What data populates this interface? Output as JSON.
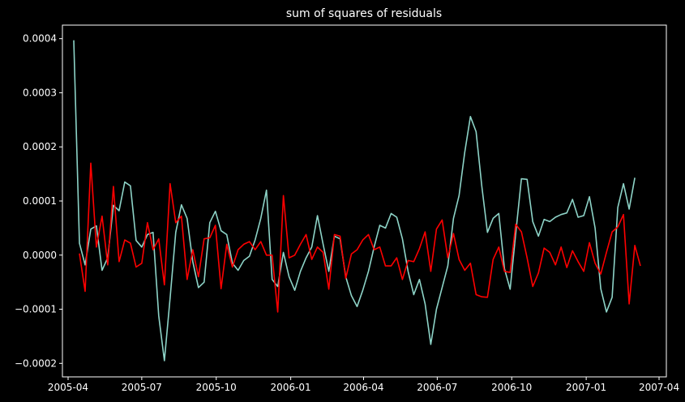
{
  "chart_data": {
    "type": "line",
    "title": "sum of squares of residuals",
    "xlabel": "",
    "ylabel": "",
    "xlim": [
      "2005-03-25",
      "2007-04-10"
    ],
    "ylim": [
      -0.000225,
      0.000425
    ],
    "x_ticks": [
      "2005-04",
      "2005-07",
      "2005-10",
      "2006-01",
      "2006-04",
      "2006-07",
      "2006-10",
      "2007-01",
      "2007-04"
    ],
    "y_ticks": [
      -0.0002,
      -0.0001,
      0.0,
      0.0001,
      0.0002,
      0.0003,
      0.0004
    ],
    "y_tick_labels": [
      "−0.0002",
      "−0.0001",
      "0.0000",
      "0.0001",
      "0.0002",
      "0.0003",
      "0.0004"
    ],
    "grid": false,
    "legend": "none",
    "colors": {
      "background": "#000000",
      "axis": "#ffffff",
      "series_1": "#8dd3c7",
      "series_2": "#ff0000"
    },
    "series": [
      {
        "color": "#8dd3c7",
        "points": [
          [
            "2005-04-08",
            0.000397
          ],
          [
            "2005-04-15",
            2.2e-05
          ],
          [
            "2005-04-22",
            -1.8e-05
          ],
          [
            "2005-04-29",
            4.8e-05
          ],
          [
            "2005-05-06",
            5.4e-05
          ],
          [
            "2005-05-13",
            -2.8e-05
          ],
          [
            "2005-05-20",
            -5e-06
          ],
          [
            "2005-05-27",
            9.2e-05
          ],
          [
            "2005-06-03",
            8.2e-05
          ],
          [
            "2005-06-10",
            0.000135
          ],
          [
            "2005-06-17",
            0.000128
          ],
          [
            "2005-06-24",
            2.7e-05
          ],
          [
            "2005-07-01",
            1.5e-05
          ],
          [
            "2005-07-08",
            3.8e-05
          ],
          [
            "2005-07-15",
            4.2e-05
          ],
          [
            "2005-07-22",
            -0.000112
          ],
          [
            "2005-07-29",
            -0.000195
          ],
          [
            "2005-08-05",
            -8e-05
          ],
          [
            "2005-08-12",
            4.2e-05
          ],
          [
            "2005-08-19",
            9.3e-05
          ],
          [
            "2005-08-26",
            6.8e-05
          ],
          [
            "2005-09-02",
            -1.2e-05
          ],
          [
            "2005-09-09",
            -6e-05
          ],
          [
            "2005-09-16",
            -5e-05
          ],
          [
            "2005-09-23",
            6e-05
          ],
          [
            "2005-09-30",
            8.1e-05
          ],
          [
            "2005-10-07",
            4.5e-05
          ],
          [
            "2005-10-14",
            3.8e-05
          ],
          [
            "2005-10-21",
            -1.5e-05
          ],
          [
            "2005-10-28",
            -2.8e-05
          ],
          [
            "2005-11-04",
            -1e-05
          ],
          [
            "2005-11-11",
            -2e-06
          ],
          [
            "2005-11-18",
            2.8e-05
          ],
          [
            "2005-11-25",
            6.8e-05
          ],
          [
            "2005-12-02",
            0.00012
          ],
          [
            "2005-12-09",
            -4.5e-05
          ],
          [
            "2005-12-16",
            -5.8e-05
          ],
          [
            "2005-12-23",
            5e-06
          ],
          [
            "2005-12-30",
            -4e-05
          ],
          [
            "2006-01-06",
            -6.5e-05
          ],
          [
            "2006-01-13",
            -3e-05
          ],
          [
            "2006-01-20",
            -5e-06
          ],
          [
            "2006-01-27",
            1.5e-05
          ],
          [
            "2006-02-03",
            7.3e-05
          ],
          [
            "2006-02-10",
            2e-05
          ],
          [
            "2006-02-17",
            -3e-05
          ],
          [
            "2006-02-24",
            3.5e-05
          ],
          [
            "2006-03-03",
            3e-05
          ],
          [
            "2006-03-10",
            -4e-05
          ],
          [
            "2006-03-17",
            -7.5e-05
          ],
          [
            "2006-03-24",
            -9.5e-05
          ],
          [
            "2006-03-31",
            -6.5e-05
          ],
          [
            "2006-04-07",
            -3e-05
          ],
          [
            "2006-04-14",
            1.5e-05
          ],
          [
            "2006-04-21",
            5.5e-05
          ],
          [
            "2006-04-28",
            5e-05
          ],
          [
            "2006-05-05",
            7.7e-05
          ],
          [
            "2006-05-12",
            7e-05
          ],
          [
            "2006-05-19",
            3e-05
          ],
          [
            "2006-05-26",
            -3e-05
          ],
          [
            "2006-06-02",
            -7.3e-05
          ],
          [
            "2006-06-09",
            -4.5e-05
          ],
          [
            "2006-06-16",
            -9e-05
          ],
          [
            "2006-06-23",
            -0.000165
          ],
          [
            "2006-06-30",
            -0.0001
          ],
          [
            "2006-07-07",
            -6e-05
          ],
          [
            "2006-07-14",
            -2e-05
          ],
          [
            "2006-07-21",
            6.8e-05
          ],
          [
            "2006-07-28",
            0.00011
          ],
          [
            "2006-08-04",
            0.00019
          ],
          [
            "2006-08-11",
            0.000256
          ],
          [
            "2006-08-18",
            0.000228
          ],
          [
            "2006-08-25",
            0.000128
          ],
          [
            "2006-09-01",
            4.2e-05
          ],
          [
            "2006-09-08",
            6.8e-05
          ],
          [
            "2006-09-15",
            7.7e-05
          ],
          [
            "2006-09-22",
            -2.5e-05
          ],
          [
            "2006-09-29",
            -6.3e-05
          ],
          [
            "2006-10-06",
            4e-05
          ],
          [
            "2006-10-13",
            0.000141
          ],
          [
            "2006-10-20",
            0.00014
          ],
          [
            "2006-10-27",
            6.2e-05
          ],
          [
            "2006-11-03",
            3.5e-05
          ],
          [
            "2006-11-10",
            6.6e-05
          ],
          [
            "2006-11-17",
            6.2e-05
          ],
          [
            "2006-11-24",
            7e-05
          ],
          [
            "2006-12-01",
            7.5e-05
          ],
          [
            "2006-12-08",
            7.8e-05
          ],
          [
            "2006-12-15",
            0.000103
          ],
          [
            "2006-12-22",
            7e-05
          ],
          [
            "2006-12-29",
            7.3e-05
          ],
          [
            "2007-01-05",
            0.000108
          ],
          [
            "2007-01-12",
            5e-05
          ],
          [
            "2007-01-19",
            -6.2e-05
          ],
          [
            "2007-01-26",
            -0.000105
          ],
          [
            "2007-02-02",
            -7.8e-05
          ],
          [
            "2007-02-09",
            8.8e-05
          ],
          [
            "2007-02-16",
            0.000132
          ],
          [
            "2007-02-23",
            8.5e-05
          ],
          [
            "2007-03-02",
            0.000143
          ]
        ]
      },
      {
        "color": "#ff0000",
        "points": [
          [
            "2005-04-15",
            3e-06
          ],
          [
            "2005-04-22",
            -6.7e-05
          ],
          [
            "2005-04-29",
            0.00017
          ],
          [
            "2005-05-06",
            1.5e-05
          ],
          [
            "2005-05-13",
            7.2e-05
          ],
          [
            "2005-05-20",
            -1.8e-05
          ],
          [
            "2005-05-27",
            0.000127
          ],
          [
            "2005-06-03",
            -1.2e-05
          ],
          [
            "2005-06-10",
            2.8e-05
          ],
          [
            "2005-06-17",
            2.2e-05
          ],
          [
            "2005-06-24",
            -2.2e-05
          ],
          [
            "2005-07-01",
            -1.5e-05
          ],
          [
            "2005-07-08",
            6e-05
          ],
          [
            "2005-07-15",
            1e-05
          ],
          [
            "2005-07-22",
            3e-05
          ],
          [
            "2005-07-29",
            -5.5e-05
          ],
          [
            "2005-08-05",
            0.000132
          ],
          [
            "2005-08-12",
            6e-05
          ],
          [
            "2005-08-19",
            7.2e-05
          ],
          [
            "2005-08-26",
            -4.5e-05
          ],
          [
            "2005-09-02",
            1e-05
          ],
          [
            "2005-09-09",
            -4e-05
          ],
          [
            "2005-09-16",
            3e-05
          ],
          [
            "2005-09-23",
            3.2e-05
          ],
          [
            "2005-09-30",
            5.5e-05
          ],
          [
            "2005-10-07",
            -6.2e-05
          ],
          [
            "2005-10-14",
            2e-05
          ],
          [
            "2005-10-21",
            -2.2e-05
          ],
          [
            "2005-10-28",
            1e-05
          ],
          [
            "2005-11-04",
            2e-05
          ],
          [
            "2005-11-11",
            2.5e-05
          ],
          [
            "2005-11-18",
            1e-05
          ],
          [
            "2005-11-25",
            2.5e-05
          ],
          [
            "2005-12-02",
            0.0
          ],
          [
            "2005-12-09",
            0.0
          ],
          [
            "2005-12-16",
            -0.000105
          ],
          [
            "2005-12-23",
            0.00011
          ],
          [
            "2005-12-30",
            -5e-06
          ],
          [
            "2006-01-06",
            0.0
          ],
          [
            "2006-01-13",
            2e-05
          ],
          [
            "2006-01-20",
            3.8e-05
          ],
          [
            "2006-01-27",
            -8e-06
          ],
          [
            "2006-02-03",
            1.5e-05
          ],
          [
            "2006-02-10",
            5e-06
          ],
          [
            "2006-02-17",
            -6.3e-05
          ],
          [
            "2006-02-24",
            3.8e-05
          ],
          [
            "2006-03-03",
            3.5e-05
          ],
          [
            "2006-03-10",
            -4.3e-05
          ],
          [
            "2006-03-17",
            2e-06
          ],
          [
            "2006-03-24",
            1e-05
          ],
          [
            "2006-03-31",
            2.8e-05
          ],
          [
            "2006-04-07",
            3.8e-05
          ],
          [
            "2006-04-14",
            1e-05
          ],
          [
            "2006-04-21",
            1.5e-05
          ],
          [
            "2006-04-28",
            -2e-05
          ],
          [
            "2006-05-05",
            -2e-05
          ],
          [
            "2006-05-12",
            -5e-06
          ],
          [
            "2006-05-19",
            -4.5e-05
          ],
          [
            "2006-05-26",
            -1e-05
          ],
          [
            "2006-06-02",
            -1.2e-05
          ],
          [
            "2006-06-09",
            1.2e-05
          ],
          [
            "2006-06-16",
            4.3e-05
          ],
          [
            "2006-06-23",
            -3e-05
          ],
          [
            "2006-06-30",
            4.8e-05
          ],
          [
            "2006-07-07",
            6.5e-05
          ],
          [
            "2006-07-14",
            -5e-06
          ],
          [
            "2006-07-21",
            4e-05
          ],
          [
            "2006-07-28",
            -8e-06
          ],
          [
            "2006-08-04",
            -2.8e-05
          ],
          [
            "2006-08-11",
            -1.5e-05
          ],
          [
            "2006-08-18",
            -7.3e-05
          ],
          [
            "2006-08-25",
            -7.7e-05
          ],
          [
            "2006-09-01",
            -7.8e-05
          ],
          [
            "2006-09-08",
            -8e-06
          ],
          [
            "2006-09-15",
            1.5e-05
          ],
          [
            "2006-09-22",
            -3e-05
          ],
          [
            "2006-09-29",
            -3.2e-05
          ],
          [
            "2006-10-06",
            5.7e-05
          ],
          [
            "2006-10-13",
            4.3e-05
          ],
          [
            "2006-10-20",
            -5e-06
          ],
          [
            "2006-10-27",
            -5.8e-05
          ],
          [
            "2006-11-03",
            -3.3e-05
          ],
          [
            "2006-11-10",
            1.3e-05
          ],
          [
            "2006-11-17",
            5e-06
          ],
          [
            "2006-11-24",
            -1.8e-05
          ],
          [
            "2006-12-01",
            1.5e-05
          ],
          [
            "2006-12-08",
            -2.3e-05
          ],
          [
            "2006-12-15",
            8e-06
          ],
          [
            "2006-12-22",
            -1.2e-05
          ],
          [
            "2006-12-29",
            -3e-05
          ],
          [
            "2007-01-05",
            2.3e-05
          ],
          [
            "2007-01-12",
            -1.5e-05
          ],
          [
            "2007-01-19",
            -3.5e-05
          ],
          [
            "2007-01-26",
            5e-06
          ],
          [
            "2007-02-02",
            4.3e-05
          ],
          [
            "2007-02-09",
            5.2e-05
          ],
          [
            "2007-02-16",
            7.5e-05
          ],
          [
            "2007-02-23",
            -9e-05
          ],
          [
            "2007-03-02",
            1.8e-05
          ],
          [
            "2007-03-09",
            -2e-05
          ]
        ]
      }
    ]
  }
}
